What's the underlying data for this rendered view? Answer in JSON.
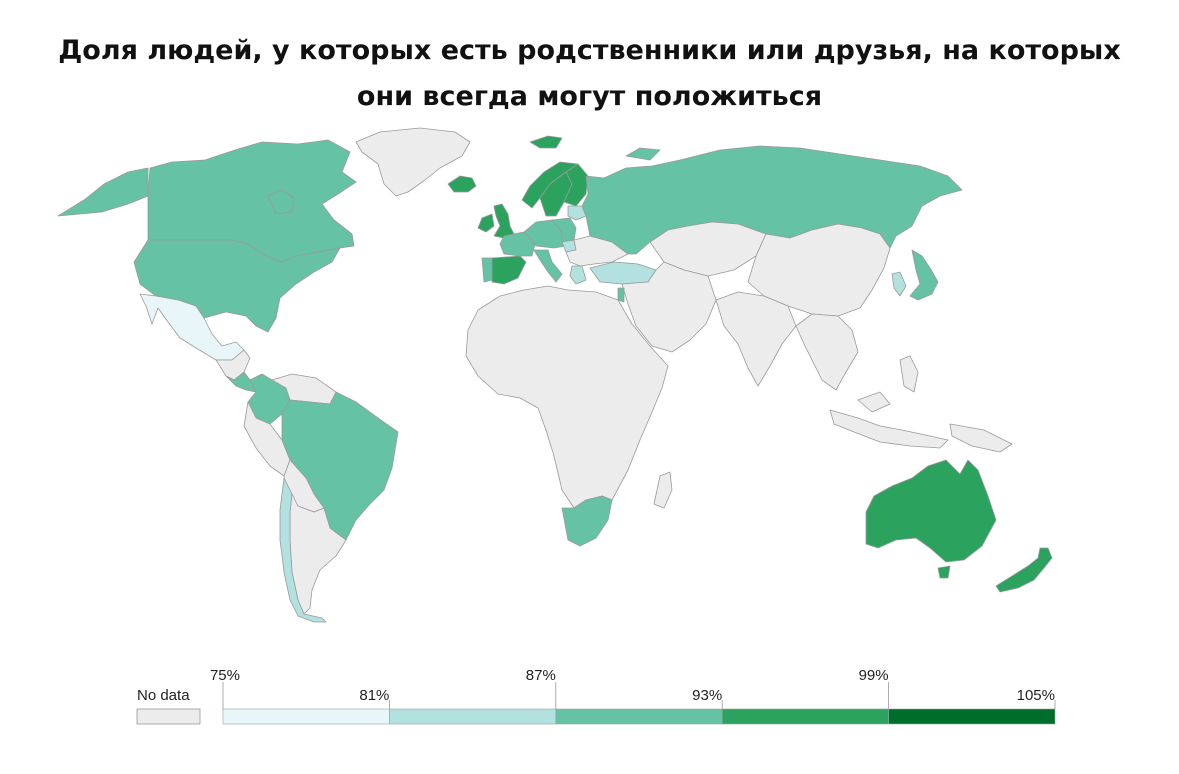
{
  "title": {
    "line1": "Доля людей, у которых есть родственники или друзья, на которых",
    "line2": "они всегда могут положиться"
  },
  "colors": {
    "no_data": "#ececec",
    "bin_75_81": "#e8f6f9",
    "bin_81_87": "#b2e1e0",
    "bin_87_93": "#66c2a4",
    "bin_93_99": "#2ca25f",
    "bin_99_105": "#006d2c",
    "border": "#9a9a9a"
  },
  "legend": {
    "no_data_label": "No data",
    "ticks": [
      "75%",
      "81%",
      "87%",
      "93%",
      "99%",
      "105%"
    ]
  },
  "regions": [
    {
      "name": "greenland",
      "bin": "no_data"
    },
    {
      "name": "canada",
      "bin": "bin_87_93"
    },
    {
      "name": "alaska",
      "bin": "bin_87_93"
    },
    {
      "name": "united-states",
      "bin": "bin_87_93"
    },
    {
      "name": "mexico",
      "bin": "bin_75_81"
    },
    {
      "name": "central-america",
      "bin": "no_data"
    },
    {
      "name": "costa-rica",
      "bin": "bin_87_93"
    },
    {
      "name": "colombia",
      "bin": "bin_87_93"
    },
    {
      "name": "venezuela",
      "bin": "no_data"
    },
    {
      "name": "brazil",
      "bin": "bin_87_93"
    },
    {
      "name": "peru",
      "bin": "no_data"
    },
    {
      "name": "bolivia",
      "bin": "no_data"
    },
    {
      "name": "argentina",
      "bin": "no_data"
    },
    {
      "name": "chile",
      "bin": "bin_81_87"
    },
    {
      "name": "iceland",
      "bin": "bin_93_99"
    },
    {
      "name": "united-kingdom",
      "bin": "bin_93_99"
    },
    {
      "name": "ireland",
      "bin": "bin_93_99"
    },
    {
      "name": "spain",
      "bin": "bin_93_99"
    },
    {
      "name": "portugal",
      "bin": "bin_87_93"
    },
    {
      "name": "france",
      "bin": "bin_87_93"
    },
    {
      "name": "germany",
      "bin": "bin_87_93"
    },
    {
      "name": "italy",
      "bin": "bin_87_93"
    },
    {
      "name": "norway",
      "bin": "bin_93_99"
    },
    {
      "name": "sweden",
      "bin": "bin_93_99"
    },
    {
      "name": "finland",
      "bin": "bin_93_99"
    },
    {
      "name": "poland",
      "bin": "bin_87_93"
    },
    {
      "name": "baltics",
      "bin": "bin_81_87"
    },
    {
      "name": "hungary",
      "bin": "bin_81_87"
    },
    {
      "name": "balkans",
      "bin": "no_data"
    },
    {
      "name": "greece",
      "bin": "bin_81_87"
    },
    {
      "name": "turkey",
      "bin": "bin_81_87"
    },
    {
      "name": "russia",
      "bin": "bin_87_93"
    },
    {
      "name": "svalbard",
      "bin": "bin_93_99"
    },
    {
      "name": "novaya-zemlya",
      "bin": "bin_87_93"
    },
    {
      "name": "kazakhstan",
      "bin": "no_data"
    },
    {
      "name": "middle-east",
      "bin": "no_data"
    },
    {
      "name": "israel",
      "bin": "bin_87_93"
    },
    {
      "name": "china",
      "bin": "no_data"
    },
    {
      "name": "india",
      "bin": "no_data"
    },
    {
      "name": "southeast-asia",
      "bin": "no_data"
    },
    {
      "name": "korea",
      "bin": "bin_81_87"
    },
    {
      "name": "japan",
      "bin": "bin_87_93"
    },
    {
      "name": "africa",
      "bin": "no_data"
    },
    {
      "name": "madagascar",
      "bin": "no_data"
    },
    {
      "name": "south-africa",
      "bin": "bin_87_93"
    },
    {
      "name": "indonesia",
      "bin": "no_data"
    },
    {
      "name": "philippines",
      "bin": "no_data"
    },
    {
      "name": "new-guinea",
      "bin": "no_data"
    },
    {
      "name": "australia",
      "bin": "bin_93_99"
    },
    {
      "name": "tasmania",
      "bin": "bin_93_99"
    },
    {
      "name": "new-zealand",
      "bin": "bin_93_99"
    }
  ]
}
